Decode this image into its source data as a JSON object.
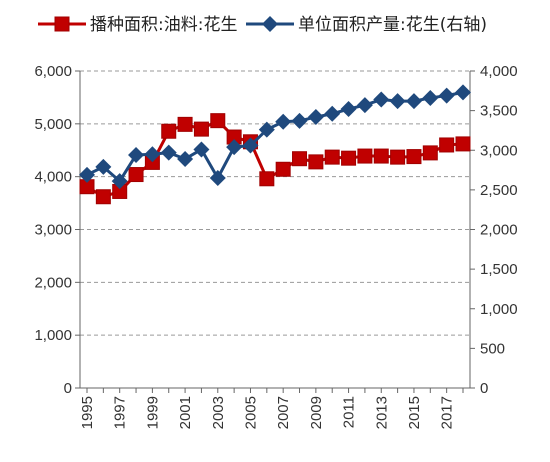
{
  "chart_data": {
    "type": "line",
    "title": "",
    "xlabel": "",
    "ylabel": "",
    "ylim": [
      0,
      6000
    ],
    "y2lim": [
      0,
      4000
    ],
    "y_ticks": [
      "0",
      "1,000",
      "2,000",
      "3,000",
      "4,000",
      "5,000",
      "6,000"
    ],
    "y2_ticks": [
      "0",
      "500",
      "1,000",
      "1,500",
      "2,000",
      "2,500",
      "3,000",
      "3,500",
      "4,000"
    ],
    "x_tick_labels": [
      "1995",
      "1997",
      "1999",
      "2001",
      "2003",
      "2005",
      "2007",
      "2009",
      "2011",
      "2013",
      "2015",
      "2017"
    ],
    "grid": "horizontal dashed",
    "legend_position": "top",
    "x": [
      1995,
      1996,
      1997,
      1998,
      1999,
      2000,
      2001,
      2002,
      2003,
      2004,
      2005,
      2006,
      2007,
      2008,
      2009,
      2010,
      2011,
      2012,
      2013,
      2014,
      2015,
      2016,
      2017,
      2018
    ],
    "series": [
      {
        "name": "播种面积:油料:花生",
        "axis": "left",
        "color": "#c00000",
        "marker": "square",
        "values": [
          3810,
          3620,
          3720,
          4040,
          4270,
          4860,
          4990,
          4900,
          5060,
          4750,
          4660,
          3960,
          4140,
          4340,
          4280,
          4370,
          4350,
          4390,
          4390,
          4370,
          4380,
          4450,
          4600,
          4620
        ]
      },
      {
        "name": "单位面积产量:花生(右轴)",
        "axis": "right",
        "color": "#1f497d",
        "marker": "diamond",
        "values": [
          2690,
          2790,
          2610,
          2940,
          2950,
          2970,
          2890,
          3010,
          2650,
          3040,
          3060,
          3260,
          3360,
          3370,
          3420,
          3460,
          3520,
          3570,
          3640,
          3620,
          3620,
          3660,
          3690,
          3730
        ]
      }
    ]
  }
}
